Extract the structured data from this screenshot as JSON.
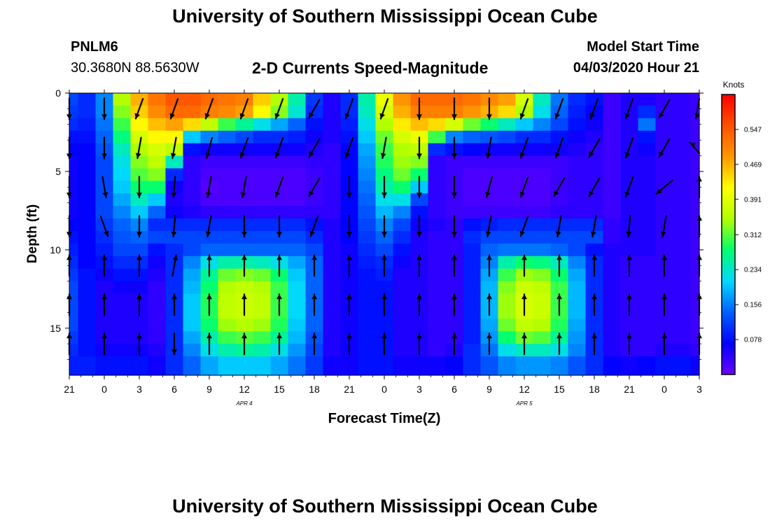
{
  "header": {
    "title": "University of Southern Mississippi Ocean Cube",
    "station_id": "PNLM6",
    "coords": "30.3680N 88.5630W",
    "start_label": "Model Start Time",
    "start_value": "04/03/2020 Hour 21"
  },
  "footer": {
    "title": "University of Southern Mississippi Ocean Cube"
  },
  "chart_data": {
    "type": "heatmap",
    "title": "2-D Currents Speed-Magnitude",
    "xlabel": "Forecast Time(Z)",
    "ylabel": "Depth (ft)",
    "x_ticks": [
      "21",
      "0",
      "3",
      "6",
      "9",
      "12",
      "15",
      "18",
      "21",
      "0",
      "3",
      "6",
      "9",
      "12",
      "15",
      "18",
      "21",
      "0",
      "3"
    ],
    "x_date_labels": [
      {
        "label": "APR 4",
        "tick_index": 5
      },
      {
        "label": "APR 5",
        "tick_index": 13
      }
    ],
    "y_ticks": [
      0,
      5,
      10,
      15
    ],
    "ylim": [
      0,
      18
    ],
    "y_inverted": true,
    "colorbar": {
      "unit": "Knots",
      "ticks": [
        0.547,
        0.469,
        0.391,
        0.312,
        0.234,
        0.156,
        0.078
      ],
      "range": [
        0,
        0.625
      ],
      "colors": [
        "#6a00ff",
        "#0000ff",
        "#0060ff",
        "#00d8ff",
        "#00ff70",
        "#b0ff00",
        "#ffff00",
        "#ff9800",
        "#ff5000",
        "#ff0000"
      ]
    },
    "depths_ft": [
      0.4,
      1.2,
      2,
      2.8,
      3.6,
      4.4,
      5.2,
      6,
      6.8,
      7.6,
      8.4,
      9.2,
      10,
      10.8,
      11.6,
      12.4,
      13.2,
      14,
      14.8,
      15.6,
      16.4,
      17.2
    ],
    "times_h": [
      0,
      1.5,
      3,
      4.5,
      6,
      7.5,
      9,
      10.5,
      12,
      13.5,
      15,
      16.5,
      18,
      19.5,
      21,
      22.5,
      24,
      25.5,
      27,
      28.5,
      30,
      31.5,
      33,
      34.5,
      36,
      37.5,
      39,
      40.5,
      42,
      43.5,
      45,
      46.5,
      48,
      49.5,
      51,
      52.5,
      54
    ],
    "speed_knots": [
      [
        0.12,
        0.1,
        0.16,
        0.35,
        0.47,
        0.52,
        0.55,
        0.55,
        0.53,
        0.52,
        0.51,
        0.45,
        0.35,
        0.25,
        0.11,
        0.05,
        0.1,
        0.25,
        0.4,
        0.49,
        0.53,
        0.53,
        0.53,
        0.52,
        0.5,
        0.48,
        0.38,
        0.24,
        0.15,
        0.1,
        0.08,
        0.03,
        0.05,
        0.05,
        0.04,
        0.04,
        0.03
      ],
      [
        0.11,
        0.1,
        0.16,
        0.33,
        0.45,
        0.5,
        0.53,
        0.53,
        0.51,
        0.5,
        0.48,
        0.42,
        0.33,
        0.23,
        0.1,
        0.05,
        0.1,
        0.24,
        0.38,
        0.47,
        0.51,
        0.51,
        0.51,
        0.49,
        0.47,
        0.44,
        0.35,
        0.22,
        0.14,
        0.09,
        0.07,
        0.03,
        0.05,
        0.1,
        0.04,
        0.04,
        0.03
      ],
      [
        0.1,
        0.09,
        0.15,
        0.3,
        0.42,
        0.46,
        0.48,
        0.44,
        0.36,
        0.3,
        0.26,
        0.22,
        0.18,
        0.14,
        0.08,
        0.05,
        0.09,
        0.22,
        0.35,
        0.43,
        0.46,
        0.44,
        0.38,
        0.32,
        0.28,
        0.24,
        0.2,
        0.16,
        0.12,
        0.08,
        0.06,
        0.03,
        0.05,
        0.15,
        0.04,
        0.04,
        0.03
      ],
      [
        0.08,
        0.08,
        0.14,
        0.27,
        0.38,
        0.42,
        0.42,
        0.2,
        0.16,
        0.14,
        0.12,
        0.1,
        0.1,
        0.09,
        0.06,
        0.05,
        0.08,
        0.2,
        0.32,
        0.38,
        0.4,
        0.3,
        0.16,
        0.14,
        0.13,
        0.12,
        0.1,
        0.1,
        0.08,
        0.06,
        0.05,
        0.03,
        0.05,
        0.08,
        0.04,
        0.04,
        0.03
      ],
      [
        0.07,
        0.07,
        0.13,
        0.24,
        0.35,
        0.38,
        0.36,
        0.08,
        0.06,
        0.06,
        0.06,
        0.06,
        0.06,
        0.06,
        0.05,
        0.04,
        0.07,
        0.18,
        0.3,
        0.35,
        0.36,
        0.1,
        0.08,
        0.07,
        0.06,
        0.06,
        0.06,
        0.06,
        0.06,
        0.05,
        0.04,
        0.03,
        0.05,
        0.06,
        0.04,
        0.04,
        0.03
      ],
      [
        0.06,
        0.07,
        0.12,
        0.22,
        0.33,
        0.36,
        0.24,
        0.04,
        0.03,
        0.03,
        0.03,
        0.03,
        0.03,
        0.03,
        0.04,
        0.04,
        0.07,
        0.17,
        0.29,
        0.34,
        0.33,
        0.04,
        0.03,
        0.03,
        0.03,
        0.03,
        0.03,
        0.03,
        0.03,
        0.04,
        0.04,
        0.03,
        0.05,
        0.05,
        0.04,
        0.04,
        0.03
      ],
      [
        0.06,
        0.07,
        0.12,
        0.21,
        0.31,
        0.33,
        0.1,
        0.04,
        0.02,
        0.02,
        0.02,
        0.02,
        0.02,
        0.02,
        0.03,
        0.04,
        0.07,
        0.16,
        0.27,
        0.32,
        0.28,
        0.04,
        0.03,
        0.02,
        0.02,
        0.02,
        0.02,
        0.02,
        0.03,
        0.04,
        0.04,
        0.03,
        0.05,
        0.05,
        0.04,
        0.04,
        0.03
      ],
      [
        0.06,
        0.07,
        0.12,
        0.2,
        0.28,
        0.28,
        0.06,
        0.04,
        0.015,
        0.02,
        0.02,
        0.02,
        0.02,
        0.02,
        0.03,
        0.04,
        0.07,
        0.15,
        0.25,
        0.28,
        0.2,
        0.04,
        0.03,
        0.02,
        0.02,
        0.02,
        0.02,
        0.02,
        0.03,
        0.04,
        0.04,
        0.03,
        0.05,
        0.05,
        0.04,
        0.04,
        0.03
      ],
      [
        0.06,
        0.07,
        0.12,
        0.18,
        0.24,
        0.2,
        0.05,
        0.04,
        0.02,
        0.02,
        0.02,
        0.02,
        0.02,
        0.02,
        0.03,
        0.04,
        0.07,
        0.14,
        0.22,
        0.22,
        0.12,
        0.04,
        0.03,
        0.02,
        0.02,
        0.02,
        0.02,
        0.02,
        0.03,
        0.04,
        0.04,
        0.03,
        0.05,
        0.05,
        0.04,
        0.04,
        0.03
      ],
      [
        0.06,
        0.07,
        0.12,
        0.16,
        0.2,
        0.14,
        0.06,
        0.05,
        0.04,
        0.04,
        0.04,
        0.04,
        0.04,
        0.04,
        0.04,
        0.04,
        0.07,
        0.13,
        0.19,
        0.16,
        0.08,
        0.04,
        0.03,
        0.03,
        0.03,
        0.03,
        0.03,
        0.03,
        0.04,
        0.04,
        0.04,
        0.03,
        0.05,
        0.05,
        0.04,
        0.04,
        0.03
      ],
      [
        0.07,
        0.07,
        0.11,
        0.14,
        0.16,
        0.1,
        0.1,
        0.1,
        0.1,
        0.1,
        0.1,
        0.1,
        0.1,
        0.1,
        0.08,
        0.05,
        0.07,
        0.12,
        0.16,
        0.12,
        0.06,
        0.05,
        0.04,
        0.08,
        0.09,
        0.1,
        0.1,
        0.1,
        0.1,
        0.1,
        0.1,
        0.04,
        0.05,
        0.05,
        0.04,
        0.04,
        0.03
      ],
      [
        0.08,
        0.07,
        0.1,
        0.13,
        0.14,
        0.12,
        0.12,
        0.12,
        0.12,
        0.12,
        0.12,
        0.12,
        0.12,
        0.12,
        0.1,
        0.05,
        0.07,
        0.11,
        0.14,
        0.1,
        0.05,
        0.04,
        0.04,
        0.1,
        0.12,
        0.12,
        0.12,
        0.12,
        0.12,
        0.12,
        0.12,
        0.04,
        0.05,
        0.05,
        0.04,
        0.04,
        0.03
      ],
      [
        0.09,
        0.07,
        0.09,
        0.12,
        0.12,
        0.08,
        0.1,
        0.12,
        0.14,
        0.14,
        0.14,
        0.14,
        0.14,
        0.14,
        0.12,
        0.05,
        0.06,
        0.1,
        0.12,
        0.08,
        0.05,
        0.04,
        0.04,
        0.09,
        0.14,
        0.15,
        0.15,
        0.15,
        0.14,
        0.12,
        0.08,
        0.05,
        0.05,
        0.05,
        0.04,
        0.04,
        0.03
      ],
      [
        0.1,
        0.07,
        0.08,
        0.1,
        0.1,
        0.06,
        0.1,
        0.16,
        0.22,
        0.25,
        0.25,
        0.24,
        0.22,
        0.18,
        0.14,
        0.05,
        0.06,
        0.09,
        0.1,
        0.06,
        0.05,
        0.04,
        0.04,
        0.09,
        0.16,
        0.25,
        0.28,
        0.27,
        0.24,
        0.16,
        0.1,
        0.05,
        0.04,
        0.04,
        0.04,
        0.04,
        0.03
      ],
      [
        0.11,
        0.08,
        0.06,
        0.08,
        0.08,
        0.05,
        0.1,
        0.18,
        0.26,
        0.32,
        0.33,
        0.32,
        0.28,
        0.2,
        0.14,
        0.05,
        0.06,
        0.08,
        0.09,
        0.05,
        0.05,
        0.04,
        0.04,
        0.09,
        0.18,
        0.3,
        0.34,
        0.33,
        0.28,
        0.18,
        0.1,
        0.05,
        0.04,
        0.04,
        0.04,
        0.04,
        0.03
      ],
      [
        0.12,
        0.08,
        0.05,
        0.06,
        0.06,
        0.04,
        0.1,
        0.19,
        0.28,
        0.35,
        0.36,
        0.35,
        0.3,
        0.21,
        0.14,
        0.05,
        0.06,
        0.08,
        0.08,
        0.05,
        0.05,
        0.04,
        0.04,
        0.09,
        0.19,
        0.33,
        0.37,
        0.36,
        0.3,
        0.19,
        0.1,
        0.05,
        0.04,
        0.04,
        0.04,
        0.04,
        0.03
      ],
      [
        0.12,
        0.08,
        0.05,
        0.05,
        0.05,
        0.04,
        0.1,
        0.2,
        0.29,
        0.36,
        0.37,
        0.36,
        0.3,
        0.21,
        0.14,
        0.05,
        0.06,
        0.08,
        0.08,
        0.05,
        0.05,
        0.04,
        0.04,
        0.09,
        0.19,
        0.34,
        0.38,
        0.37,
        0.3,
        0.19,
        0.1,
        0.05,
        0.04,
        0.04,
        0.04,
        0.04,
        0.03
      ],
      [
        0.12,
        0.08,
        0.05,
        0.05,
        0.05,
        0.04,
        0.1,
        0.2,
        0.29,
        0.36,
        0.37,
        0.36,
        0.3,
        0.21,
        0.14,
        0.05,
        0.06,
        0.08,
        0.08,
        0.05,
        0.05,
        0.04,
        0.04,
        0.09,
        0.19,
        0.34,
        0.38,
        0.37,
        0.3,
        0.19,
        0.1,
        0.05,
        0.04,
        0.04,
        0.04,
        0.04,
        0.03
      ],
      [
        0.12,
        0.08,
        0.05,
        0.05,
        0.05,
        0.04,
        0.1,
        0.2,
        0.28,
        0.34,
        0.35,
        0.34,
        0.29,
        0.2,
        0.14,
        0.05,
        0.06,
        0.08,
        0.08,
        0.05,
        0.05,
        0.04,
        0.04,
        0.09,
        0.18,
        0.32,
        0.36,
        0.35,
        0.29,
        0.18,
        0.1,
        0.05,
        0.04,
        0.04,
        0.04,
        0.04,
        0.03
      ],
      [
        0.11,
        0.08,
        0.05,
        0.05,
        0.05,
        0.04,
        0.1,
        0.18,
        0.25,
        0.3,
        0.31,
        0.3,
        0.26,
        0.19,
        0.13,
        0.05,
        0.06,
        0.08,
        0.08,
        0.05,
        0.05,
        0.04,
        0.04,
        0.09,
        0.17,
        0.28,
        0.32,
        0.31,
        0.26,
        0.17,
        0.1,
        0.05,
        0.04,
        0.04,
        0.04,
        0.04,
        0.03
      ],
      [
        0.1,
        0.08,
        0.06,
        0.06,
        0.06,
        0.05,
        0.1,
        0.16,
        0.22,
        0.25,
        0.26,
        0.25,
        0.22,
        0.17,
        0.12,
        0.05,
        0.06,
        0.08,
        0.08,
        0.05,
        0.05,
        0.04,
        0.05,
        0.1,
        0.15,
        0.22,
        0.24,
        0.24,
        0.22,
        0.16,
        0.1,
        0.05,
        0.04,
        0.04,
        0.05,
        0.05,
        0.04
      ],
      [
        0.09,
        0.09,
        0.08,
        0.08,
        0.08,
        0.06,
        0.1,
        0.14,
        0.18,
        0.2,
        0.2,
        0.2,
        0.18,
        0.15,
        0.11,
        0.06,
        0.06,
        0.08,
        0.08,
        0.06,
        0.06,
        0.06,
        0.07,
        0.1,
        0.13,
        0.16,
        0.17,
        0.17,
        0.16,
        0.13,
        0.1,
        0.07,
        0.06,
        0.07,
        0.08,
        0.08,
        0.06
      ]
    ],
    "vector_times_h": [
      0,
      3,
      6,
      9,
      12,
      15,
      18,
      21,
      24,
      27,
      30,
      33,
      36,
      39,
      42,
      45,
      48,
      51,
      54
    ],
    "vector_depths_ft": [
      1,
      3.5,
      6,
      8.5,
      11,
      13.5,
      16
    ],
    "vectors_deg": [
      [
        180,
        180,
        200,
        200,
        200,
        200,
        200,
        210,
        200,
        200,
        180,
        180,
        180,
        200,
        200,
        200,
        200,
        210,
        200
      ],
      [
        180,
        180,
        190,
        190,
        195,
        200,
        200,
        210,
        200,
        190,
        180,
        180,
        190,
        200,
        200,
        210,
        200,
        210,
        300
      ],
      [
        180,
        170,
        180,
        185,
        190,
        190,
        200,
        210,
        180,
        180,
        180,
        180,
        195,
        200,
        210,
        210,
        200,
        230,
        0
      ],
      [
        180,
        160,
        180,
        185,
        190,
        180,
        180,
        200,
        180,
        180,
        180,
        180,
        190,
        200,
        190,
        190,
        185,
        190,
        0
      ],
      [
        0,
        0,
        0,
        10,
        0,
        0,
        0,
        0,
        0,
        0,
        0,
        0,
        0,
        0,
        0,
        0,
        0,
        0,
        0
      ],
      [
        0,
        0,
        0,
        0,
        0,
        0,
        0,
        0,
        0,
        0,
        0,
        0,
        0,
        0,
        0,
        0,
        0,
        0,
        0
      ],
      [
        0,
        0,
        0,
        180,
        0,
        0,
        0,
        0,
        0,
        0,
        0,
        0,
        0,
        0,
        0,
        0,
        0,
        0,
        0
      ]
    ]
  }
}
